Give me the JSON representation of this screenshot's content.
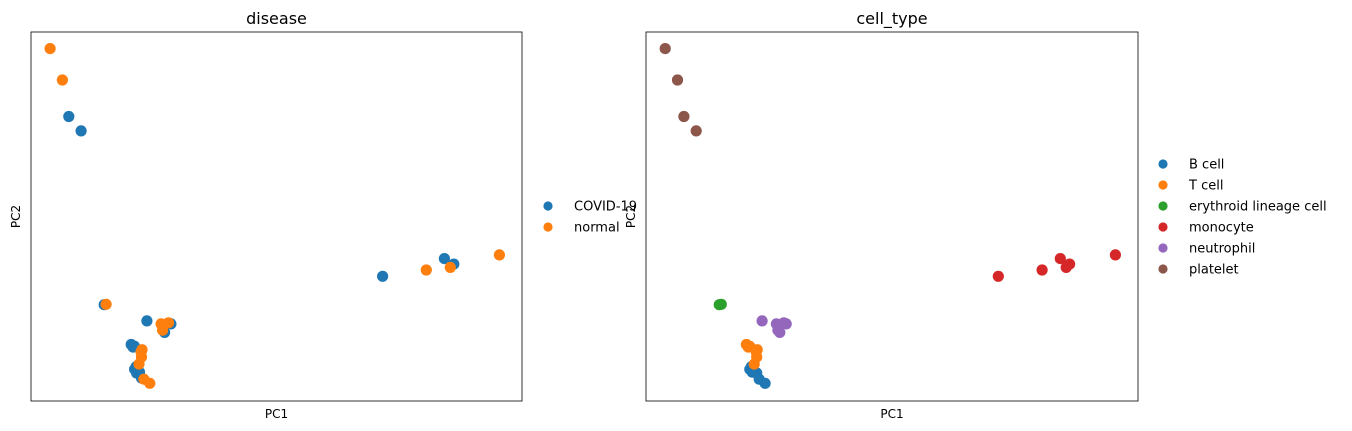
{
  "chart_data": [
    {
      "type": "scatter",
      "title": "disease",
      "xlabel": "PC1",
      "ylabel": "PC2",
      "xlim": [
        0,
        100
      ],
      "ylim": [
        0,
        100
      ],
      "grid": false,
      "legend_position": "right",
      "series": [
        {
          "name": "COVID-19",
          "color": "#1f77b4",
          "x": [
            7.7,
            10.2,
            14.9,
            20.4,
            20.8,
            21.1,
            21.5,
            22.1,
            21.4,
            21.1,
            22.5,
            23.6,
            27.2,
            28.5,
            71.6,
            84.2,
            86.1
          ],
          "y": [
            77.1,
            73.2,
            26.1,
            15.3,
            14.6,
            14.8,
            7.6,
            7.8,
            9.3,
            8.6,
            6.2,
            21.7,
            18.6,
            20.9,
            33.8,
            38.6,
            37.1
          ]
        },
        {
          "name": "normal",
          "color": "#ff7f0e",
          "x": [
            3.9,
            6.4,
            15.3,
            22.4,
            22.5,
            22.0,
            22.6,
            23.0,
            24.2,
            26.5,
            26.8,
            28.0,
            80.5,
            85.4,
            95.4
          ],
          "y": [
            95.5,
            87.0,
            26.2,
            13.3,
            11.9,
            10.0,
            13.9,
            5.9,
            4.8,
            20.9,
            19.2,
            21.2,
            35.5,
            36.2,
            39.6
          ]
        }
      ]
    },
    {
      "type": "scatter",
      "title": "cell_type",
      "xlabel": "PC1",
      "ylabel": "PC2",
      "xlim": [
        0,
        100
      ],
      "ylim": [
        0,
        100
      ],
      "grid": false,
      "legend_position": "right",
      "series": [
        {
          "name": "B cell",
          "color": "#1f77b4",
          "x": [
            21.4,
            21.1,
            22.5,
            23.0,
            24.2,
            21.6
          ],
          "y": [
            9.3,
            8.6,
            7.6,
            5.9,
            4.8,
            7.8
          ]
        },
        {
          "name": "T cell",
          "color": "#ff7f0e",
          "x": [
            20.4,
            20.8,
            21.1,
            22.4,
            22.5,
            22.0,
            22.6
          ],
          "y": [
            15.3,
            14.6,
            14.8,
            13.3,
            11.9,
            10.0,
            13.9
          ]
        },
        {
          "name": "erythroid lineage cell",
          "color": "#2ca02c",
          "x": [
            14.9,
            15.3
          ],
          "y": [
            26.1,
            26.2
          ]
        },
        {
          "name": "monocyte",
          "color": "#d62728",
          "x": [
            71.6,
            80.5,
            84.2,
            85.4,
            86.1,
            95.4
          ],
          "y": [
            33.8,
            35.5,
            38.6,
            36.2,
            37.1,
            39.6
          ]
        },
        {
          "name": "neutrophil",
          "color": "#9467bd",
          "x": [
            23.6,
            26.5,
            26.8,
            27.2,
            28.0,
            28.5
          ],
          "y": [
            21.7,
            20.9,
            19.2,
            18.6,
            21.2,
            20.9
          ]
        },
        {
          "name": "platelet",
          "color": "#8c564b",
          "x": [
            3.9,
            6.4,
            7.7,
            10.2
          ],
          "y": [
            95.5,
            87.0,
            77.1,
            73.2
          ]
        }
      ]
    }
  ]
}
